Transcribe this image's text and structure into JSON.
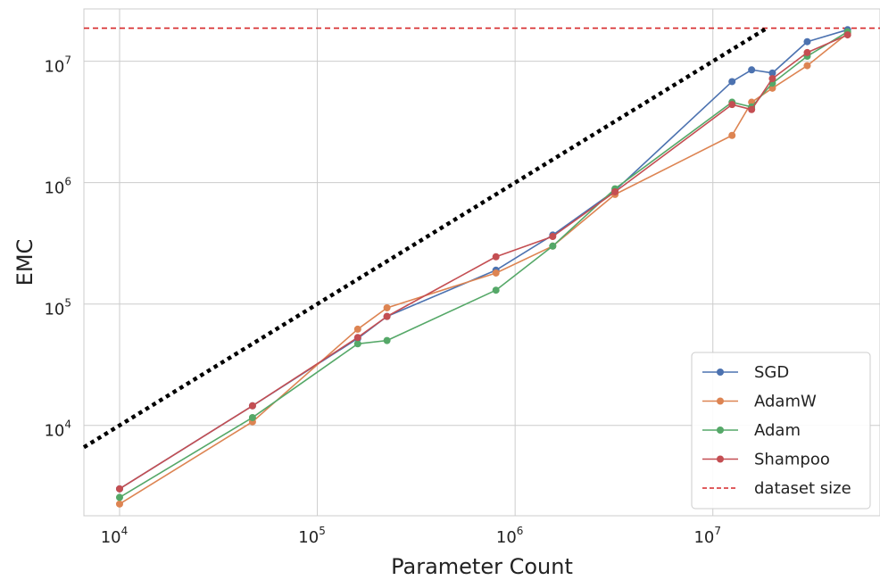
{
  "chart_data": {
    "type": "line",
    "xlabel": "Parameter Count",
    "ylabel": "EMC",
    "x_scale": "log",
    "y_scale": "log",
    "xlim": [
      6600,
      70000000
    ],
    "ylim": [
      1800,
      27000000
    ],
    "x_ticks": [
      {
        "value": 10000,
        "base": "10",
        "exp": "4"
      },
      {
        "value": 100000,
        "base": "10",
        "exp": "5"
      },
      {
        "value": 1000000,
        "base": "10",
        "exp": "6"
      },
      {
        "value": 10000000,
        "base": "10",
        "exp": "7"
      }
    ],
    "y_ticks": [
      {
        "value": 10000,
        "base": "10",
        "exp": "4"
      },
      {
        "value": 100000,
        "base": "10",
        "exp": "5"
      },
      {
        "value": 1000000,
        "base": "10",
        "exp": "6"
      },
      {
        "value": 10000000,
        "base": "10",
        "exp": "7"
      }
    ],
    "grid": true,
    "legend_position": "bottom-right",
    "series": [
      {
        "name": "SGD",
        "color": "#4c72b0",
        "points": [
          [
            10000,
            3000
          ],
          [
            47000,
            14500
          ],
          [
            160000,
            52000
          ],
          [
            225000,
            79000
          ],
          [
            800000,
            190000
          ],
          [
            1550000,
            370000
          ],
          [
            3200000,
            860000
          ],
          [
            12500000,
            6800000
          ],
          [
            15700000,
            8500000
          ],
          [
            20000000,
            8000000
          ],
          [
            30000000,
            14500000
          ],
          [
            48000000,
            18200000
          ]
        ]
      },
      {
        "name": "AdamW",
        "color": "#dd8452",
        "points": [
          [
            10000,
            2250
          ],
          [
            47000,
            10700
          ],
          [
            160000,
            62000
          ],
          [
            225000,
            93000
          ],
          [
            800000,
            180000
          ],
          [
            1550000,
            300000
          ],
          [
            3200000,
            800000
          ],
          [
            12500000,
            2450000
          ],
          [
            15700000,
            4600000
          ],
          [
            20000000,
            6000000
          ],
          [
            30000000,
            9200000
          ],
          [
            48000000,
            17000000
          ]
        ]
      },
      {
        "name": "Adam",
        "color": "#55a868",
        "points": [
          [
            10000,
            2550
          ],
          [
            47000,
            11600
          ],
          [
            160000,
            47000
          ],
          [
            225000,
            50000
          ],
          [
            800000,
            130000
          ],
          [
            1550000,
            300000
          ],
          [
            3200000,
            890000
          ],
          [
            12500000,
            4600000
          ],
          [
            15700000,
            4200000
          ],
          [
            20000000,
            6600000
          ],
          [
            30000000,
            11000000
          ],
          [
            48000000,
            17500000
          ]
        ]
      },
      {
        "name": "Shampoo",
        "color": "#c44e52",
        "points": [
          [
            10000,
            3000
          ],
          [
            47000,
            14500
          ],
          [
            160000,
            53000
          ],
          [
            225000,
            79000
          ],
          [
            800000,
            245000
          ],
          [
            1550000,
            360000
          ],
          [
            3200000,
            840000
          ],
          [
            12500000,
            4400000
          ],
          [
            15700000,
            4000000
          ],
          [
            20000000,
            7200000
          ],
          [
            30000000,
            11800000
          ],
          [
            48000000,
            16500000
          ]
        ]
      }
    ],
    "reference_lines": [
      {
        "name": "dataset size",
        "color": "#d62728",
        "style": "dashed",
        "y": 18750000
      },
      {
        "name": "",
        "color": "#000000",
        "style": "dotted",
        "points": [
          [
            6600,
            6600
          ],
          [
            18750000,
            18750000
          ]
        ]
      }
    ]
  }
}
